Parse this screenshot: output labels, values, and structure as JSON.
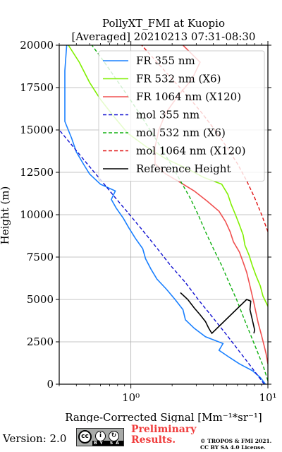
{
  "chart_data": {
    "type": "line",
    "title": "PollyXT_FMI at Kuopio",
    "subtitle": "[Averaged] 20210213 07:31-08:30",
    "xlabel": "Range-Corrected Signal [Mm⁻¹*sr⁻¹]",
    "ylabel": "Height (m)",
    "xscale": "log",
    "xlim": [
      0.3,
      10
    ],
    "ylim": [
      0,
      20000
    ],
    "xticks": [
      1,
      10
    ],
    "xtick_labels": [
      "10⁰",
      "10¹"
    ],
    "yticks": [
      0,
      2500,
      5000,
      7500,
      10000,
      12500,
      15000,
      17500,
      20000
    ],
    "grid": true,
    "legend_position": "upper right",
    "series": [
      {
        "name": "FR 355 nm",
        "color": "#1a80ff",
        "style": "solid",
        "points": [
          [
            9.6,
            0
          ],
          [
            8.8,
            400
          ],
          [
            7.7,
            800
          ],
          [
            6.2,
            1200
          ],
          [
            5.2,
            1600
          ],
          [
            4.4,
            2000
          ],
          [
            4.7,
            2400
          ],
          [
            3.5,
            2800
          ],
          [
            2.9,
            3300
          ],
          [
            2.5,
            3800
          ],
          [
            2.4,
            4400
          ],
          [
            2.1,
            5000
          ],
          [
            1.82,
            5600
          ],
          [
            1.55,
            6200
          ],
          [
            1.4,
            6800
          ],
          [
            1.28,
            7400
          ],
          [
            1.22,
            8000
          ],
          [
            1.08,
            8600
          ],
          [
            0.97,
            9200
          ],
          [
            0.88,
            9800
          ],
          [
            0.78,
            10400
          ],
          [
            0.72,
            10900
          ],
          [
            0.77,
            11400
          ],
          [
            0.6,
            11800
          ],
          [
            0.5,
            12400
          ],
          [
            0.45,
            13000
          ],
          [
            0.4,
            13700
          ],
          [
            0.37,
            14500
          ],
          [
            0.33,
            15500
          ],
          [
            0.33,
            17000
          ],
          [
            0.33,
            18500
          ],
          [
            0.34,
            20000
          ]
        ]
      },
      {
        "name": "FR 532 nm (X6)",
        "color": "#80f000",
        "style": "solid",
        "points": [
          [
            10.0,
            4600
          ],
          [
            9.2,
            5200
          ],
          [
            8.8,
            5800
          ],
          [
            8.2,
            6400
          ],
          [
            7.7,
            7000
          ],
          [
            7.3,
            7600
          ],
          [
            6.8,
            8200
          ],
          [
            6.6,
            8800
          ],
          [
            6.2,
            9400
          ],
          [
            5.8,
            10000
          ],
          [
            5.4,
            10600
          ],
          [
            5.1,
            11200
          ],
          [
            4.6,
            11800
          ],
          [
            3.4,
            12200
          ],
          [
            2.6,
            12700
          ],
          [
            1.8,
            13300
          ],
          [
            1.3,
            14000
          ],
          [
            0.95,
            14800
          ],
          [
            0.75,
            15800
          ],
          [
            0.6,
            16800
          ],
          [
            0.5,
            17800
          ],
          [
            0.42,
            19000
          ],
          [
            0.35,
            20000
          ]
        ]
      },
      {
        "name": "FR 1064 nm (X120)",
        "color": "#f05050",
        "style": "solid",
        "points": [
          [
            10.0,
            1200
          ],
          [
            9.7,
            1800
          ],
          [
            9.3,
            2400
          ],
          [
            8.9,
            3000
          ],
          [
            8.5,
            3600
          ],
          [
            8.2,
            4200
          ],
          [
            7.9,
            4800
          ],
          [
            7.6,
            5400
          ],
          [
            7.3,
            6000
          ],
          [
            7.0,
            6600
          ],
          [
            6.6,
            7200
          ],
          [
            6.2,
            7800
          ],
          [
            5.6,
            8400
          ],
          [
            5.3,
            9000
          ],
          [
            4.9,
            9600
          ],
          [
            4.4,
            10200
          ],
          [
            3.6,
            10800
          ],
          [
            2.9,
            11400
          ],
          [
            2.3,
            11900
          ],
          [
            1.8,
            12400
          ],
          [
            1.5,
            13000
          ],
          [
            1.5,
            14000
          ],
          [
            1.6,
            15000
          ],
          [
            1.8,
            16000
          ],
          [
            2.2,
            17000
          ],
          [
            2.8,
            18000
          ],
          [
            3.2,
            19000
          ],
          [
            2.4,
            20000
          ]
        ]
      },
      {
        "name": "mol 355 nm",
        "color": "#1010d0",
        "style": "dashed",
        "points": [
          [
            9.4,
            0
          ],
          [
            7.6,
            1000
          ],
          [
            6.1,
            2000
          ],
          [
            4.9,
            3000
          ],
          [
            3.9,
            4000
          ],
          [
            3.1,
            5000
          ],
          [
            2.5,
            6000
          ],
          [
            1.95,
            7000
          ],
          [
            1.56,
            8000
          ],
          [
            1.24,
            9000
          ],
          [
            0.98,
            10000
          ],
          [
            0.77,
            11000
          ],
          [
            0.61,
            12000
          ],
          [
            0.48,
            13000
          ],
          [
            0.38,
            14000
          ],
          [
            0.3,
            15000
          ]
        ]
      },
      {
        "name": "mol 532 nm (X6)",
        "color": "#10b010",
        "style": "dashed",
        "points": [
          [
            10.0,
            200
          ],
          [
            9.3,
            1000
          ],
          [
            8.3,
            2000
          ],
          [
            7.4,
            3000
          ],
          [
            6.6,
            4000
          ],
          [
            5.9,
            5000
          ],
          [
            5.2,
            6000
          ],
          [
            4.6,
            7000
          ],
          [
            4.0,
            8000
          ],
          [
            3.5,
            9000
          ],
          [
            3.1,
            10000
          ],
          [
            2.7,
            11000
          ],
          [
            2.3,
            12000
          ],
          [
            1.95,
            13000
          ],
          [
            1.65,
            14000
          ],
          [
            1.38,
            15000
          ],
          [
            1.15,
            16000
          ],
          [
            0.95,
            17000
          ],
          [
            0.78,
            18000
          ],
          [
            0.64,
            19000
          ],
          [
            0.52,
            20000
          ]
        ]
      },
      {
        "name": "mol 1064 nm (X120)",
        "color": "#e01010",
        "style": "dashed",
        "points": [
          [
            10.0,
            9000
          ],
          [
            9.0,
            10000
          ],
          [
            8.0,
            11000
          ],
          [
            7.0,
            12000
          ],
          [
            6.0,
            13000
          ],
          [
            5.0,
            14000
          ],
          [
            4.1,
            15000
          ],
          [
            3.3,
            16000
          ],
          [
            2.6,
            17000
          ],
          [
            2.0,
            18000
          ],
          [
            1.55,
            19000
          ],
          [
            1.2,
            20000
          ]
        ]
      },
      {
        "name": "Reference Height",
        "color": "#000000",
        "style": "solid",
        "points": [
          [
            2.3,
            5400
          ],
          [
            2.6,
            5000
          ],
          [
            2.9,
            4500
          ],
          [
            3.2,
            4100
          ],
          [
            3.5,
            3700
          ],
          [
            3.7,
            3300
          ],
          [
            3.9,
            3000
          ],
          [
            7.0,
            5000
          ],
          [
            7.5,
            4900
          ],
          [
            7.4,
            4400
          ],
          [
            7.6,
            4000
          ],
          [
            7.8,
            3600
          ],
          [
            8.0,
            3200
          ],
          [
            7.9,
            3000
          ]
        ]
      }
    ]
  },
  "footer": {
    "version": "Version: 2.0",
    "license_badge": "BY SA",
    "preliminary": "Preliminary",
    "results": "Results.",
    "copyright_line1": "© TROPOS & FMI 2021.",
    "copyright_line2": "CC BY SA 4.0 License."
  }
}
